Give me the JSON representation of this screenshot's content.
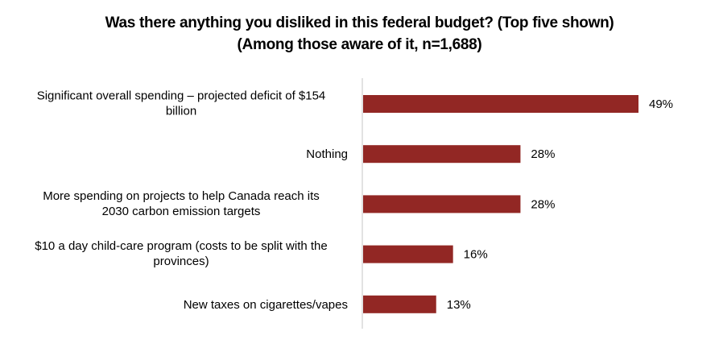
{
  "chart_data": {
    "type": "bar",
    "orientation": "horizontal",
    "title": "Was there anything you disliked in this federal budget? (Top five shown)",
    "subtitle": "(Among those aware of it, n=1,688)",
    "categories": [
      [
        "Significant overall spending – projected deficit of $154",
        "billion"
      ],
      [
        "Nothing"
      ],
      [
        "More spending on projects to help Canada reach its",
        "2030 carbon emission targets"
      ],
      [
        "$10 a day child-care program (costs to be split with the",
        "provinces)"
      ],
      [
        "New taxes on cigarettes/vapes"
      ]
    ],
    "values": [
      49,
      28,
      28,
      16,
      13
    ],
    "value_labels": [
      "49%",
      "28%",
      "28%",
      "16%",
      "13%"
    ],
    "unit": "%",
    "xlabel": "",
    "ylabel": "",
    "xlim": [
      0,
      60
    ],
    "grid": false,
    "legend": "none",
    "bar_color": "#922724",
    "axis_color": "#d9d9d9"
  }
}
